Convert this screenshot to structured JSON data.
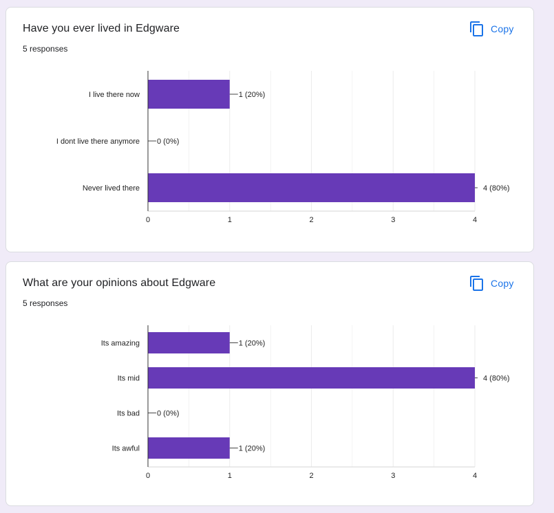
{
  "colors": {
    "bar": "#673ab7",
    "link": "#1a73e8",
    "grid": "#ebebeb",
    "axis": "#333333",
    "background": "#f0ebf8"
  },
  "cards": [
    {
      "title": "Have you ever lived in Edgware",
      "subtitle": "5 responses",
      "copy_label": "Copy",
      "copy_icon": "copy-icon"
    },
    {
      "title": "What are your opinions about Edgware",
      "subtitle": "5 responses",
      "copy_label": "Copy",
      "copy_icon": "copy-icon"
    }
  ],
  "chart_data": [
    {
      "type": "bar",
      "orientation": "horizontal",
      "title": "Have you ever lived in Edgware",
      "categories": [
        "I live there now",
        "I dont live there anymore",
        "Never lived there"
      ],
      "values": [
        1,
        0,
        4
      ],
      "labels": [
        "1 (20%)",
        "0 (0%)",
        "4 (80%)"
      ],
      "xlim": [
        0,
        4
      ],
      "xticks": [
        0,
        1,
        2,
        3,
        4
      ],
      "grid": true
    },
    {
      "type": "bar",
      "orientation": "horizontal",
      "title": "What are your opinions about Edgware",
      "categories": [
        "Its amazing",
        "Its mid",
        "Its bad",
        "Its awful"
      ],
      "values": [
        1,
        4,
        0,
        1
      ],
      "labels": [
        "1 (20%)",
        "4 (80%)",
        "0 (0%)",
        "1 (20%)"
      ],
      "xlim": [
        0,
        4
      ],
      "xticks": [
        0,
        1,
        2,
        3,
        4
      ],
      "grid": true
    }
  ]
}
